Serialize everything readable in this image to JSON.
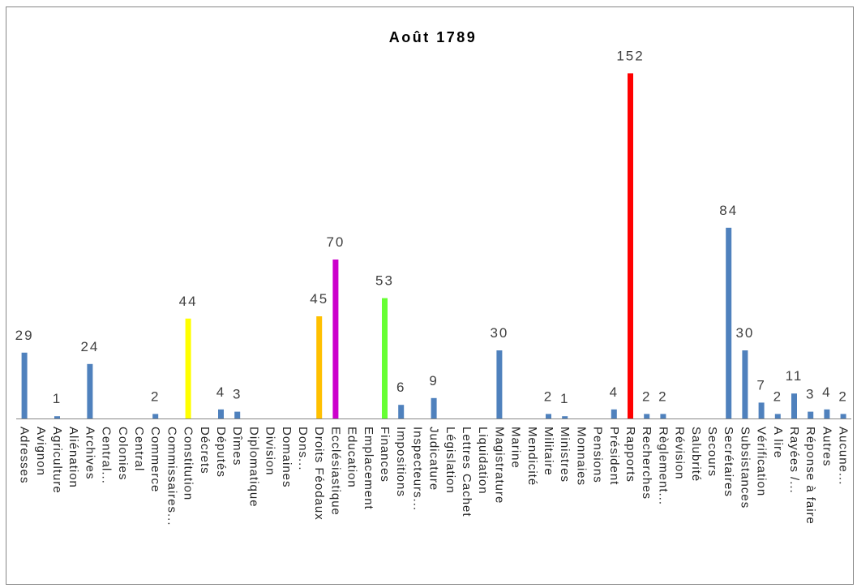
{
  "chart_data": {
    "type": "bar",
    "title": "Août 1789",
    "categories": [
      "Adresses",
      "Avignon",
      "Agriculture",
      "Aliénation",
      "Archives",
      "Central...",
      "Colonies",
      "Central",
      "Commerce",
      "Commissaires...",
      "Constitution",
      "Décrets",
      "Députés",
      "Dîmes",
      "Diplomatique",
      "Division",
      "Domaines",
      "Dons...",
      "Droits Féodaux",
      "Ecclésiastique",
      "Education",
      "Emplacement",
      "Finances",
      "Impositions",
      "Inspecteurs...",
      "Judicature",
      "Législation",
      "Lettres Cachet",
      "Liquidation",
      "Magistrature",
      "Marine",
      "Mendicité",
      "Militaire",
      "Ministres",
      "Monnaies",
      "Pensions",
      "Président",
      "Rapports",
      "Recherches",
      "Règlement...",
      "Révision",
      "Salubrité",
      "Secours",
      "Secrétaires",
      "Subsistances",
      "Vérification",
      "A lire",
      "Rayées /...",
      "Réponse à faire",
      "Autres",
      "Aucune..."
    ],
    "values": [
      29,
      0,
      1,
      0,
      24,
      0,
      0,
      0,
      2,
      0,
      44,
      0,
      4,
      3,
      0,
      0,
      0,
      0,
      45,
      70,
      0,
      0,
      53,
      6,
      0,
      9,
      0,
      0,
      0,
      30,
      0,
      0,
      2,
      1,
      0,
      0,
      4,
      152,
      2,
      2,
      0,
      0,
      0,
      84,
      30,
      7,
      2,
      11,
      3,
      4,
      2
    ],
    "bar_colors": [
      "#4F81BD",
      "#4F81BD",
      "#4F81BD",
      "#4F81BD",
      "#4F81BD",
      "#4F81BD",
      "#4F81BD",
      "#4F81BD",
      "#4F81BD",
      "#4F81BD",
      "#FFFF00",
      "#4F81BD",
      "#4F81BD",
      "#4F81BD",
      "#4F81BD",
      "#4F81BD",
      "#4F81BD",
      "#4F81BD",
      "#FFC000",
      "#CC00CC",
      "#4F81BD",
      "#4F81BD",
      "#66FF33",
      "#4F81BD",
      "#4F81BD",
      "#4F81BD",
      "#4F81BD",
      "#4F81BD",
      "#4F81BD",
      "#4F81BD",
      "#4F81BD",
      "#4F81BD",
      "#4F81BD",
      "#4F81BD",
      "#4F81BD",
      "#4F81BD",
      "#4F81BD",
      "#FF0000",
      "#4F81BD",
      "#4F81BD",
      "#4F81BD",
      "#4F81BD",
      "#4F81BD",
      "#4F81BD",
      "#4F81BD",
      "#4F81BD",
      "#4F81BD",
      "#4F81BD",
      "#4F81BD",
      "#4F81BD",
      "#4F81BD"
    ],
    "ylim": [
      0,
      160
    ],
    "grid": false,
    "legend": false,
    "y_axis_visible": false,
    "data_labels": true
  }
}
